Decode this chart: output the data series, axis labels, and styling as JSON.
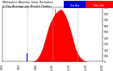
{
  "title": "Milwaukee Weather Solar Radiation",
  "subtitle": "& Day Average per Minute (Today)",
  "legend_blue_label": "Day Avg",
  "legend_red_label": "Solar Rad",
  "background_color": "#ffffff",
  "plot_bg_color": "#ffffff",
  "area_color": "#ff0000",
  "avg_line_color": "#0000ff",
  "grid_color": "#aaaaaa",
  "title_color": "#000000",
  "xlabel_color": "#000000",
  "ylabel_color": "#000000",
  "xlim": [
    0,
    1440
  ],
  "ylim": [
    0,
    900
  ],
  "yticks": [
    0,
    100,
    200,
    300,
    400,
    500,
    600,
    700,
    800,
    900
  ],
  "xtick_positions": [
    0,
    120,
    240,
    360,
    480,
    600,
    720,
    840,
    960,
    1080,
    1200,
    1320,
    1440
  ],
  "xtick_labels": [
    "0:00",
    "2:00",
    "4:00",
    "6:00",
    "8:00",
    "10:00",
    "12:00",
    "14:00",
    "16:00",
    "18:00",
    "20:00",
    "22:00",
    "24:00"
  ],
  "avg_line_x": 350,
  "solar_data_x": [
    0,
    30,
    60,
    90,
    120,
    150,
    180,
    210,
    240,
    270,
    300,
    330,
    360,
    390,
    420,
    450,
    480,
    510,
    540,
    570,
    600,
    630,
    660,
    690,
    720,
    750,
    780,
    810,
    840,
    870,
    900,
    930,
    960,
    990,
    1020,
    1050,
    1080,
    1110,
    1140,
    1170,
    1200,
    1230,
    1260,
    1290,
    1320,
    1350,
    1380,
    1410,
    1440
  ],
  "solar_data_y": [
    0,
    0,
    0,
    0,
    0,
    0,
    0,
    0,
    0,
    0,
    0,
    0,
    0,
    0,
    0,
    5,
    20,
    60,
    120,
    200,
    310,
    430,
    560,
    650,
    720,
    780,
    820,
    850,
    870,
    840,
    780,
    700,
    600,
    480,
    350,
    220,
    140,
    80,
    40,
    15,
    5,
    2,
    0,
    0,
    0,
    0,
    0,
    0,
    0
  ],
  "spike_x": 750,
  "spike_y": 870,
  "spike2_x": 810,
  "spike2_y": 820
}
